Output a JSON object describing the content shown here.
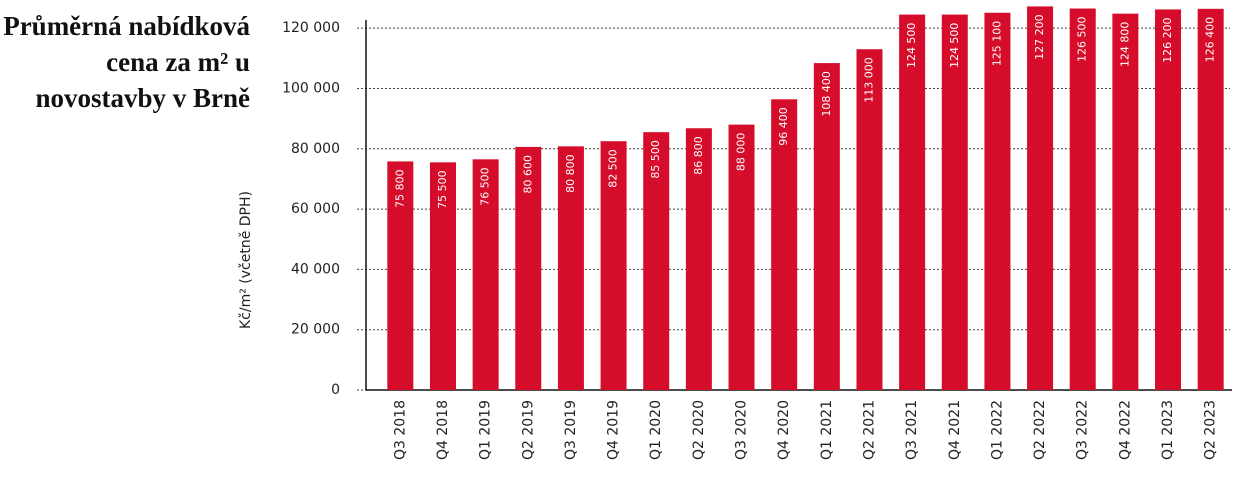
{
  "chart_data": {
    "type": "bar",
    "title": "Průměrná nabídková cena za m² u novostavby v Brně",
    "y_label": "Kč/m² (včetně DPH)",
    "categories": [
      "Q3 2018",
      "Q4 2018",
      "Q1 2019",
      "Q2 2019",
      "Q3 2019",
      "Q4 2019",
      "Q1 2020",
      "Q2 2020",
      "Q3 2020",
      "Q4 2020",
      "Q1 2021",
      "Q2 2021",
      "Q3 2021",
      "Q4 2021",
      "Q1 2022",
      "Q2 2022",
      "Q3 2022",
      "Q4 2022",
      "Q1 2023",
      "Q2 2023"
    ],
    "values": [
      75800,
      75500,
      76500,
      80600,
      80800,
      82500,
      85500,
      86800,
      88000,
      96400,
      108400,
      113000,
      124500,
      124500,
      125100,
      127200,
      126500,
      124800,
      126200,
      126400
    ],
    "value_labels": [
      "75 800",
      "75 500",
      "76 500",
      "80 600",
      "80 800",
      "82 500",
      "85 500",
      "86 800",
      "88 000",
      "96 400",
      "108 400",
      "113 000",
      "124 500",
      "124 500",
      "125 100",
      "127 200",
      "126 500",
      "124 800",
      "126 200",
      "126 400"
    ],
    "color": "#d50c2a",
    "ylim": [
      0,
      128000
    ],
    "yticks": [
      0,
      {
        "value": 20000,
        "label": "20 000"
      },
      {
        "value": 40000,
        "label": "40 000"
      },
      {
        "value": 60000,
        "label": "60 000"
      },
      {
        "value": 80000,
        "label": "80 000"
      },
      {
        "value": 100000,
        "label": "100 000"
      },
      {
        "value": 120000,
        "label": "120 000"
      }
    ],
    "grid": true
  }
}
